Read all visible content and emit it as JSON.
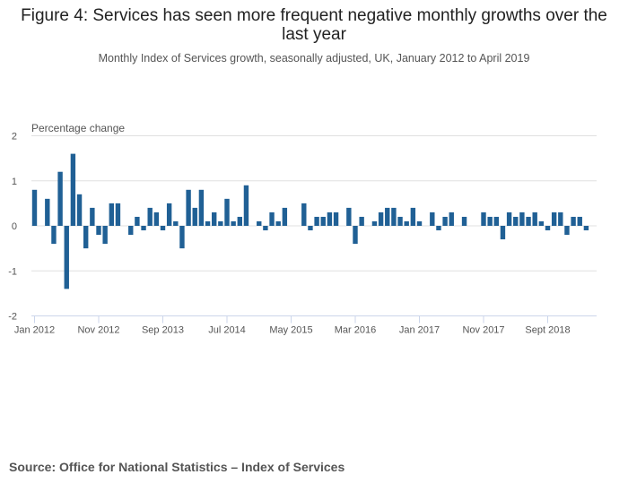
{
  "chart_data": {
    "type": "bar",
    "title": "Figure 4: Services has seen more frequent negative monthly growths over the last year",
    "subtitle": "Monthly Index of Services growth, seasonally adjusted, UK, January 2012 to April 2019",
    "xlabel": "",
    "ylabel": "Percentage change",
    "ylim": [
      -2,
      2
    ],
    "yticks": [
      2,
      1,
      0,
      -1,
      -2
    ],
    "grid": true,
    "bar_color": "#206095",
    "x_start": "Jan 2012",
    "x_end": "Apr 2019",
    "xtick_labels": [
      {
        "label": "Jan 2012",
        "index": 0
      },
      {
        "label": "Nov 2012",
        "index": 10
      },
      {
        "label": "Sep 2013",
        "index": 20
      },
      {
        "label": "Jul 2014",
        "index": 30
      },
      {
        "label": "May 2015",
        "index": 40
      },
      {
        "label": "Mar 2016",
        "index": 50
      },
      {
        "label": "Jan 2017",
        "index": 60
      },
      {
        "label": "Nov 2017",
        "index": 70
      },
      {
        "label": "Sept 2018",
        "index": 80
      }
    ],
    "categories": [
      "Jan 2012",
      "Feb 2012",
      "Mar 2012",
      "Apr 2012",
      "May 2012",
      "Jun 2012",
      "Jul 2012",
      "Aug 2012",
      "Sep 2012",
      "Oct 2012",
      "Nov 2012",
      "Dec 2012",
      "Jan 2013",
      "Feb 2013",
      "Mar 2013",
      "Apr 2013",
      "May 2013",
      "Jun 2013",
      "Jul 2013",
      "Aug 2013",
      "Sep 2013",
      "Oct 2013",
      "Nov 2013",
      "Dec 2013",
      "Jan 2014",
      "Feb 2014",
      "Mar 2014",
      "Apr 2014",
      "May 2014",
      "Jun 2014",
      "Jul 2014",
      "Aug 2014",
      "Sep 2014",
      "Oct 2014",
      "Nov 2014",
      "Dec 2014",
      "Jan 2015",
      "Feb 2015",
      "Mar 2015",
      "Apr 2015",
      "May 2015",
      "Jun 2015",
      "Jul 2015",
      "Aug 2015",
      "Sep 2015",
      "Oct 2015",
      "Nov 2015",
      "Dec 2015",
      "Jan 2016",
      "Feb 2016",
      "Mar 2016",
      "Apr 2016",
      "May 2016",
      "Jun 2016",
      "Jul 2016",
      "Aug 2016",
      "Sep 2016",
      "Oct 2016",
      "Nov 2016",
      "Dec 2016",
      "Jan 2017",
      "Feb 2017",
      "Mar 2017",
      "Apr 2017",
      "May 2017",
      "Jun 2017",
      "Jul 2017",
      "Aug 2017",
      "Sep 2017",
      "Oct 2017",
      "Nov 2017",
      "Dec 2017",
      "Jan 2018",
      "Feb 2018",
      "Mar 2018",
      "Apr 2018",
      "May 2018",
      "Jun 2018",
      "Jul 2018",
      "Aug 2018",
      "Sep 2018",
      "Oct 2018",
      "Nov 2018",
      "Dec 2018",
      "Jan 2019",
      "Feb 2019",
      "Mar 2019",
      "Apr 2019"
    ],
    "values": [
      0.8,
      0.0,
      0.6,
      -0.4,
      1.2,
      -1.4,
      1.6,
      0.7,
      -0.5,
      0.4,
      -0.2,
      -0.4,
      0.5,
      0.5,
      0.0,
      -0.2,
      0.2,
      -0.1,
      0.4,
      0.3,
      -0.1,
      0.5,
      0.1,
      -0.5,
      0.8,
      0.4,
      0.8,
      0.1,
      0.3,
      0.1,
      0.6,
      0.1,
      0.2,
      0.9,
      0.0,
      0.1,
      -0.1,
      0.3,
      0.1,
      0.4,
      0.0,
      0.0,
      0.5,
      -0.1,
      0.2,
      0.2,
      0.3,
      0.3,
      0.0,
      0.4,
      -0.4,
      0.2,
      0.0,
      0.1,
      0.3,
      0.4,
      0.4,
      0.2,
      0.1,
      0.4,
      0.1,
      0.0,
      0.3,
      -0.1,
      0.2,
      0.3,
      0.0,
      0.2,
      0.0,
      0.0,
      0.3,
      0.2,
      0.2,
      -0.3,
      0.3,
      0.2,
      0.3,
      0.2,
      0.3,
      0.1,
      -0.1,
      0.3,
      0.3,
      -0.2,
      0.2,
      0.2,
      -0.1,
      0.0
    ]
  },
  "source": "Source: Office for National Statistics – Index of Services"
}
